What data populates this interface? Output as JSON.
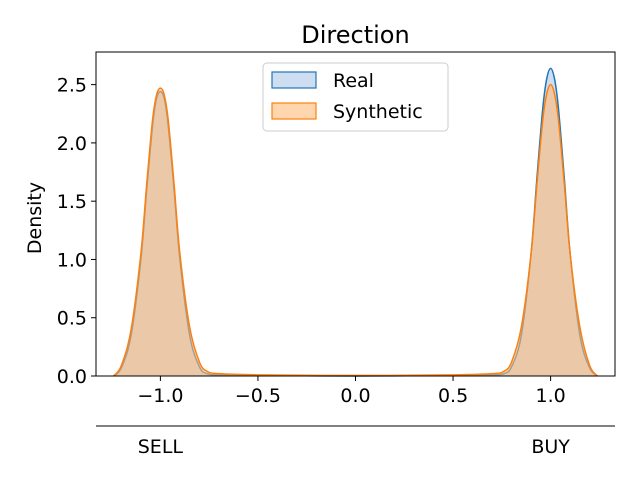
{
  "chart_data": {
    "type": "area",
    "title": "Direction",
    "xlabel": "",
    "ylabel": "Density",
    "xlim": [
      -1.33,
      1.33
    ],
    "ylim": [
      0,
      2.78
    ],
    "xticks": [
      -1.0,
      -0.5,
      0.0,
      0.5,
      1.0
    ],
    "xtick_labels": [
      "−1.0",
      "−0.5",
      "0.0",
      "0.5",
      "1.0"
    ],
    "yticks": [
      0.0,
      0.5,
      1.0,
      1.5,
      2.0,
      2.5
    ],
    "ytick_labels": [
      "0.0",
      "0.5",
      "1.0",
      "1.5",
      "2.0",
      "2.5"
    ],
    "secondary_axis": {
      "categories": [
        "SELL",
        "BUY"
      ],
      "positions": [
        -1.0,
        1.0
      ]
    },
    "legend": {
      "placement": "upper-center"
    },
    "grid": false,
    "series": [
      {
        "name": "Real",
        "color": "#1f77b4",
        "fill": "#aec7e8",
        "x": [
          -1.24,
          -1.2,
          -1.15,
          -1.1,
          -1.07,
          -1.04,
          -1.02,
          -1.0,
          -0.98,
          -0.96,
          -0.93,
          -0.9,
          -0.85,
          -0.8,
          -0.76,
          -0.7,
          -0.5,
          0.0,
          0.5,
          0.7,
          0.76,
          0.8,
          0.85,
          0.9,
          0.93,
          0.96,
          0.98,
          1.0,
          1.02,
          1.04,
          1.07,
          1.1,
          1.15,
          1.2,
          1.24
        ],
        "y": [
          0.0,
          0.07,
          0.35,
          1.0,
          1.6,
          2.15,
          2.38,
          2.44,
          2.38,
          2.15,
          1.6,
          1.0,
          0.35,
          0.08,
          0.02,
          0.01,
          0.005,
          0.0,
          0.005,
          0.01,
          0.02,
          0.08,
          0.35,
          1.05,
          1.7,
          2.3,
          2.55,
          2.64,
          2.55,
          2.3,
          1.7,
          1.05,
          0.35,
          0.07,
          0.0
        ]
      },
      {
        "name": "Synthetic",
        "color": "#ff7f0e",
        "fill": "#ffbb78",
        "x": [
          -1.24,
          -1.2,
          -1.15,
          -1.1,
          -1.07,
          -1.04,
          -1.02,
          -1.0,
          -0.98,
          -0.96,
          -0.93,
          -0.9,
          -0.85,
          -0.8,
          -0.76,
          -0.7,
          -0.5,
          0.0,
          0.5,
          0.7,
          0.76,
          0.8,
          0.85,
          0.9,
          0.93,
          0.96,
          0.98,
          1.0,
          1.02,
          1.04,
          1.07,
          1.1,
          1.15,
          1.2,
          1.24
        ],
        "y": [
          0.0,
          0.09,
          0.4,
          1.05,
          1.65,
          2.2,
          2.41,
          2.47,
          2.41,
          2.2,
          1.65,
          1.05,
          0.42,
          0.12,
          0.04,
          0.02,
          0.01,
          0.005,
          0.01,
          0.02,
          0.04,
          0.12,
          0.42,
          1.05,
          1.65,
          2.2,
          2.42,
          2.5,
          2.42,
          2.2,
          1.65,
          1.05,
          0.42,
          0.09,
          0.0
        ]
      }
    ]
  }
}
